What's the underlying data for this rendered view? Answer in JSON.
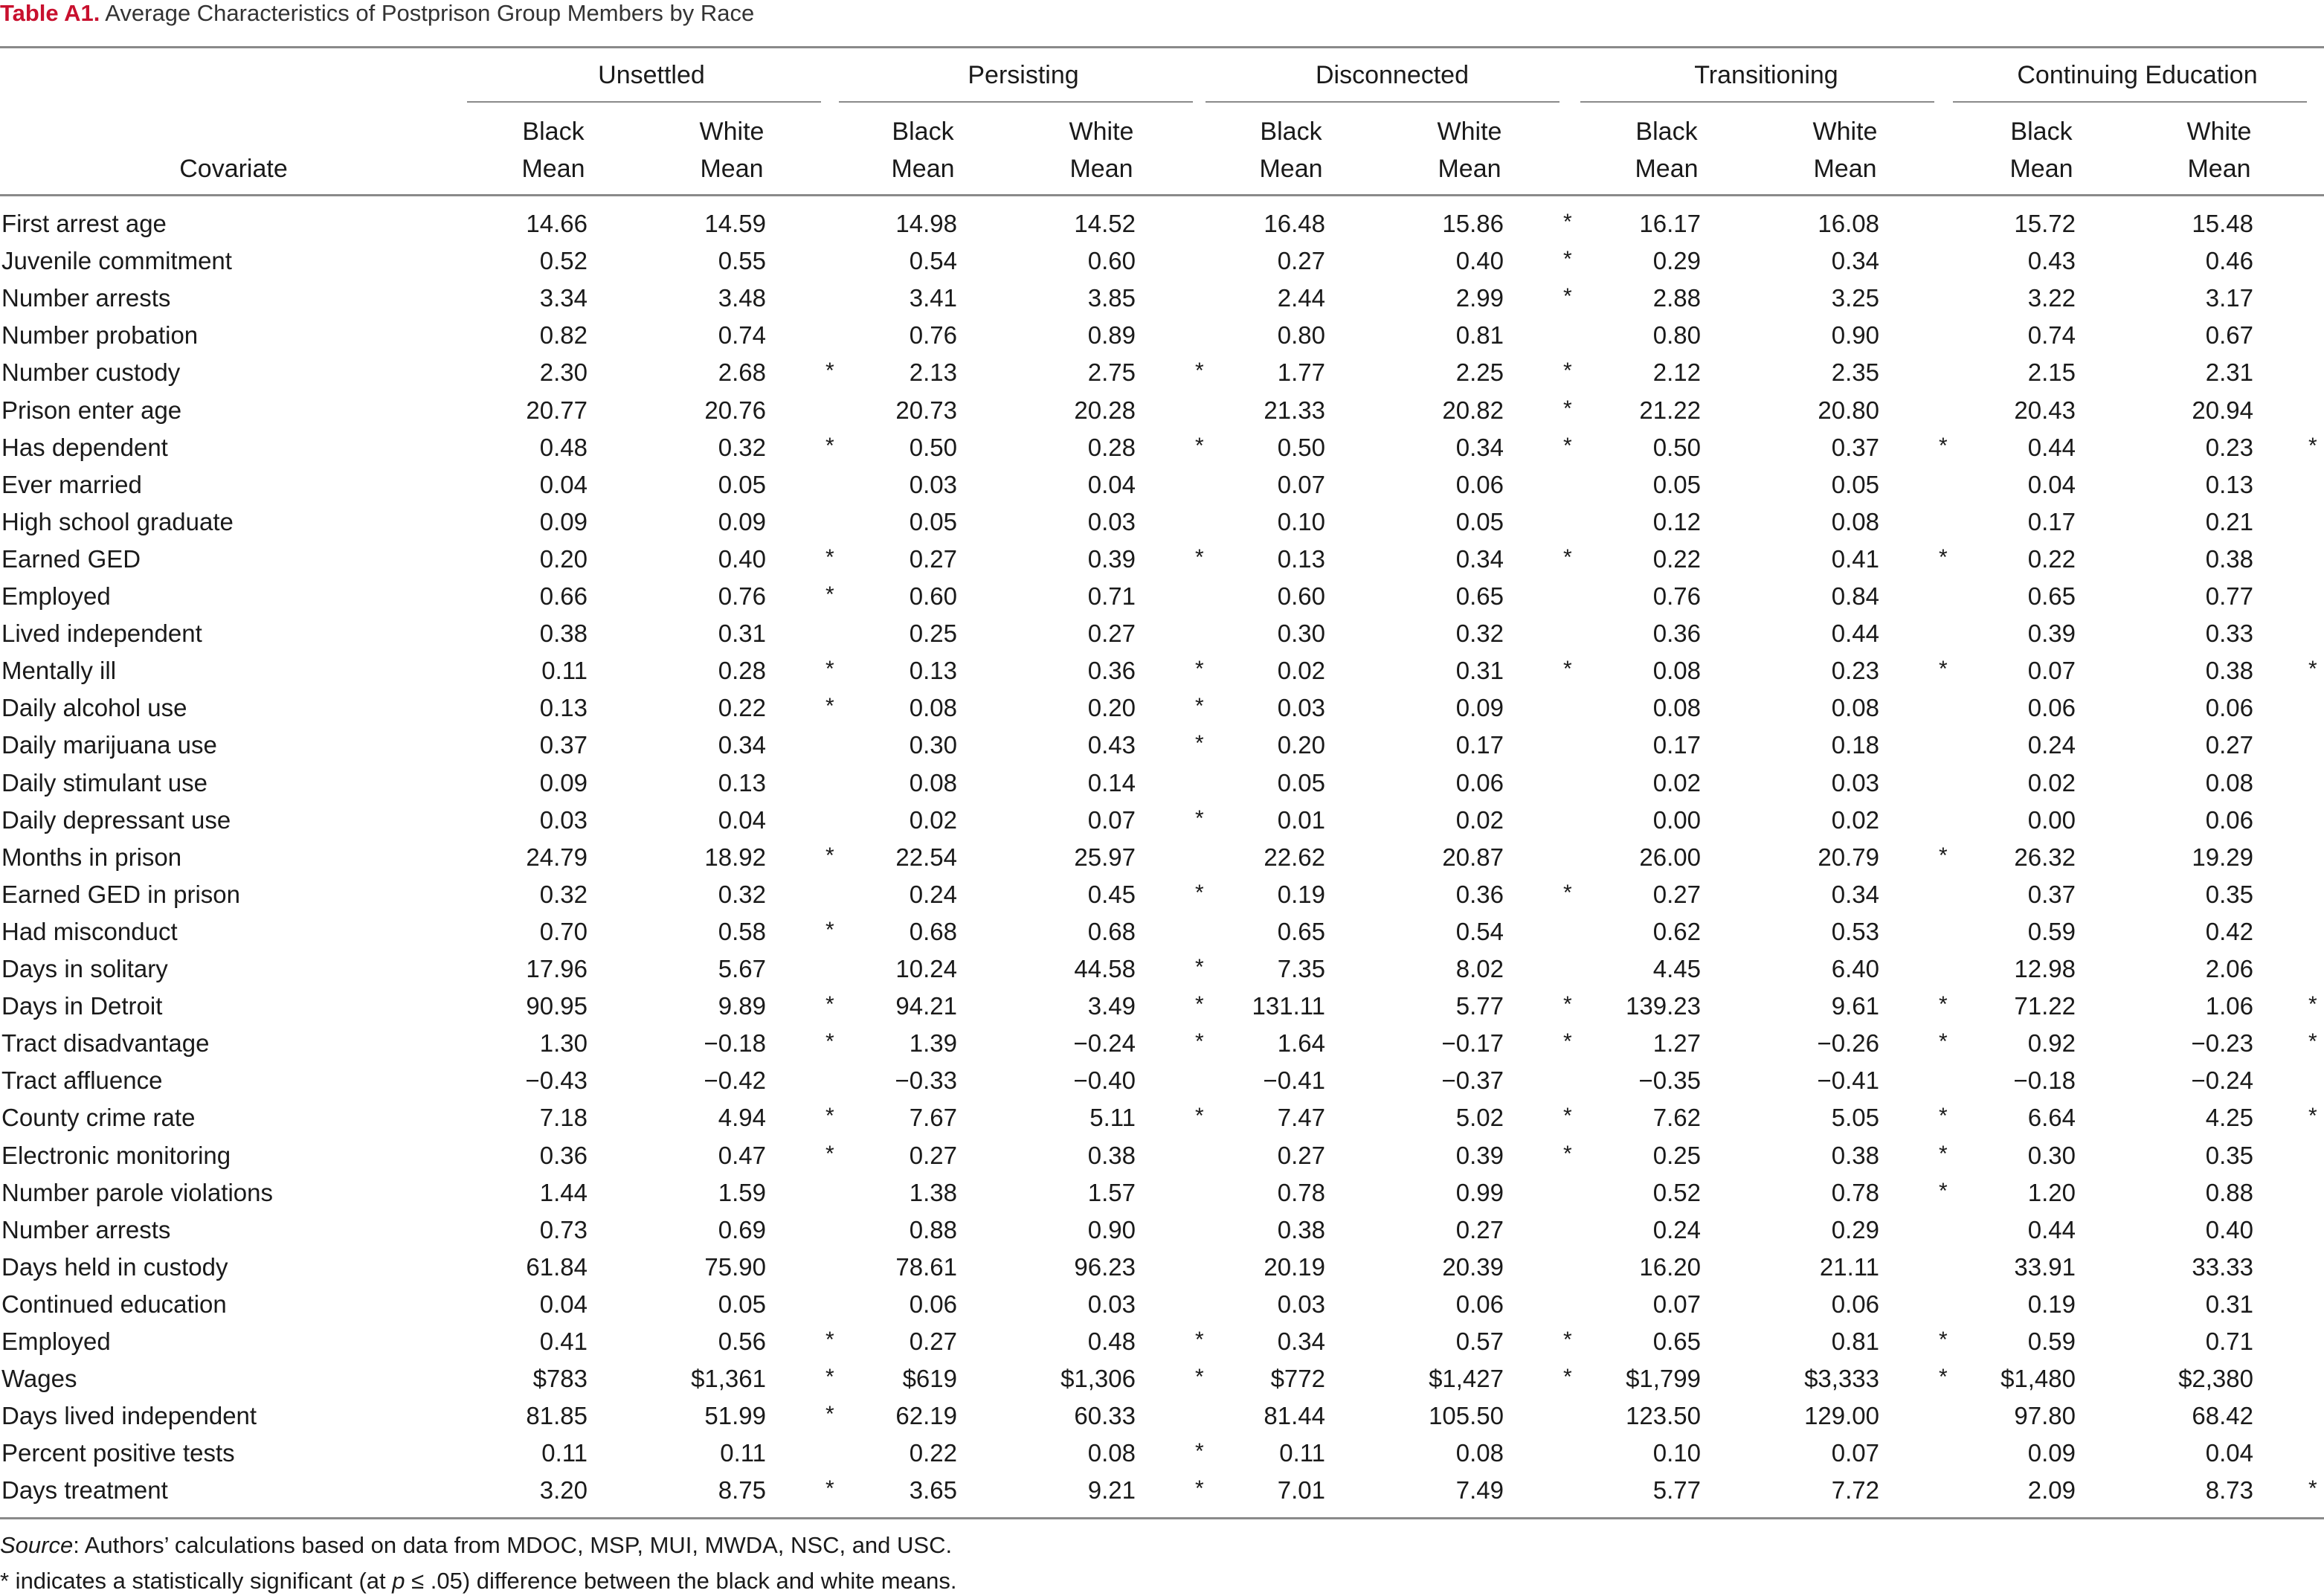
{
  "caption": {
    "label": "Table A1.",
    "title": "Average Characteristics of Postprison Group Members by Race"
  },
  "columns": {
    "covariate_header": "Covariate",
    "groups": [
      "Unsettled",
      "Persisting",
      "Disconnected",
      "Transitioning",
      "Continuing Education"
    ],
    "sub_top": [
      "Black",
      "White"
    ],
    "sub_bottom": [
      "Mean",
      "Mean"
    ]
  },
  "rows": [
    {
      "label": "First arrest age",
      "v": [
        "14.66",
        "14.59",
        "14.98",
        "14.52",
        "16.48",
        "15.86",
        "16.17",
        "16.08",
        "15.72",
        "15.48"
      ],
      "s": [
        "",
        "",
        "*",
        "",
        ""
      ]
    },
    {
      "label": "Juvenile commitment",
      "v": [
        "0.52",
        "0.55",
        "0.54",
        "0.60",
        "0.27",
        "0.40",
        "0.29",
        "0.34",
        "0.43",
        "0.46"
      ],
      "s": [
        "",
        "",
        "*",
        "",
        ""
      ]
    },
    {
      "label": "Number arrests",
      "v": [
        "3.34",
        "3.48",
        "3.41",
        "3.85",
        "2.44",
        "2.99",
        "2.88",
        "3.25",
        "3.22",
        "3.17"
      ],
      "s": [
        "",
        "",
        "*",
        "",
        ""
      ]
    },
    {
      "label": "Number probation",
      "v": [
        "0.82",
        "0.74",
        "0.76",
        "0.89",
        "0.80",
        "0.81",
        "0.80",
        "0.90",
        "0.74",
        "0.67"
      ],
      "s": [
        "",
        "",
        "",
        "",
        ""
      ]
    },
    {
      "label": "Number custody",
      "v": [
        "2.30",
        "2.68",
        "2.13",
        "2.75",
        "1.77",
        "2.25",
        "2.12",
        "2.35",
        "2.15",
        "2.31"
      ],
      "s": [
        "*",
        "*",
        "*",
        "",
        ""
      ]
    },
    {
      "label": "Prison enter age",
      "v": [
        "20.77",
        "20.76",
        "20.73",
        "20.28",
        "21.33",
        "20.82",
        "21.22",
        "20.80",
        "20.43",
        "20.94"
      ],
      "s": [
        "",
        "",
        "*",
        "",
        ""
      ]
    },
    {
      "label": "Has dependent",
      "v": [
        "0.48",
        "0.32",
        "0.50",
        "0.28",
        "0.50",
        "0.34",
        "0.50",
        "0.37",
        "0.44",
        "0.23"
      ],
      "s": [
        "*",
        "*",
        "*",
        "*",
        "*"
      ]
    },
    {
      "label": "Ever married",
      "v": [
        "0.04",
        "0.05",
        "0.03",
        "0.04",
        "0.07",
        "0.06",
        "0.05",
        "0.05",
        "0.04",
        "0.13"
      ],
      "s": [
        "",
        "",
        "",
        "",
        ""
      ]
    },
    {
      "label": "High school graduate",
      "v": [
        "0.09",
        "0.09",
        "0.05",
        "0.03",
        "0.10",
        "0.05",
        "0.12",
        "0.08",
        "0.17",
        "0.21"
      ],
      "s": [
        "",
        "",
        "",
        "",
        ""
      ]
    },
    {
      "label": "Earned GED",
      "v": [
        "0.20",
        "0.40",
        "0.27",
        "0.39",
        "0.13",
        "0.34",
        "0.22",
        "0.41",
        "0.22",
        "0.38"
      ],
      "s": [
        "*",
        "*",
        "*",
        "*",
        ""
      ]
    },
    {
      "label": "Employed",
      "v": [
        "0.66",
        "0.76",
        "0.60",
        "0.71",
        "0.60",
        "0.65",
        "0.76",
        "0.84",
        "0.65",
        "0.77"
      ],
      "s": [
        "*",
        "",
        "",
        "",
        ""
      ]
    },
    {
      "label": "Lived independent",
      "v": [
        "0.38",
        "0.31",
        "0.25",
        "0.27",
        "0.30",
        "0.32",
        "0.36",
        "0.44",
        "0.39",
        "0.33"
      ],
      "s": [
        "",
        "",
        "",
        "",
        ""
      ]
    },
    {
      "label": "Mentally ill",
      "v": [
        "0.11",
        "0.28",
        "0.13",
        "0.36",
        "0.02",
        "0.31",
        "0.08",
        "0.23",
        "0.07",
        "0.38"
      ],
      "s": [
        "*",
        "*",
        "*",
        "*",
        "*"
      ]
    },
    {
      "label": "Daily alcohol use",
      "v": [
        "0.13",
        "0.22",
        "0.08",
        "0.20",
        "0.03",
        "0.09",
        "0.08",
        "0.08",
        "0.06",
        "0.06"
      ],
      "s": [
        "*",
        "*",
        "",
        "",
        ""
      ]
    },
    {
      "label": "Daily marijuana use",
      "v": [
        "0.37",
        "0.34",
        "0.30",
        "0.43",
        "0.20",
        "0.17",
        "0.17",
        "0.18",
        "0.24",
        "0.27"
      ],
      "s": [
        "",
        "*",
        "",
        "",
        ""
      ]
    },
    {
      "label": "Daily stimulant use",
      "v": [
        "0.09",
        "0.13",
        "0.08",
        "0.14",
        "0.05",
        "0.06",
        "0.02",
        "0.03",
        "0.02",
        "0.08"
      ],
      "s": [
        "",
        "",
        "",
        "",
        ""
      ]
    },
    {
      "label": "Daily depressant use",
      "v": [
        "0.03",
        "0.04",
        "0.02",
        "0.07",
        "0.01",
        "0.02",
        "0.00",
        "0.02",
        "0.00",
        "0.06"
      ],
      "s": [
        "",
        "*",
        "",
        "",
        ""
      ]
    },
    {
      "label": "Months in prison",
      "v": [
        "24.79",
        "18.92",
        "22.54",
        "25.97",
        "22.62",
        "20.87",
        "26.00",
        "20.79",
        "26.32",
        "19.29"
      ],
      "s": [
        "*",
        "",
        "",
        "*",
        ""
      ]
    },
    {
      "label": "Earned GED in prison",
      "v": [
        "0.32",
        "0.32",
        "0.24",
        "0.45",
        "0.19",
        "0.36",
        "0.27",
        "0.34",
        "0.37",
        "0.35"
      ],
      "s": [
        "",
        "*",
        "*",
        "",
        ""
      ]
    },
    {
      "label": "Had misconduct",
      "v": [
        "0.70",
        "0.58",
        "0.68",
        "0.68",
        "0.65",
        "0.54",
        "0.62",
        "0.53",
        "0.59",
        "0.42"
      ],
      "s": [
        "*",
        "",
        "",
        "",
        ""
      ]
    },
    {
      "label": "Days in solitary",
      "v": [
        "17.96",
        "5.67",
        "10.24",
        "44.58",
        "7.35",
        "8.02",
        "4.45",
        "6.40",
        "12.98",
        "2.06"
      ],
      "s": [
        "",
        "*",
        "",
        "",
        ""
      ]
    },
    {
      "label": "Days in Detroit",
      "v": [
        "90.95",
        "9.89",
        "94.21",
        "3.49",
        "131.11",
        "5.77",
        "139.23",
        "9.61",
        "71.22",
        "1.06"
      ],
      "s": [
        "*",
        "*",
        "*",
        "*",
        "*"
      ]
    },
    {
      "label": "Tract disadvantage",
      "v": [
        "1.30",
        "−0.18",
        "1.39",
        "−0.24",
        "1.64",
        "−0.17",
        "1.27",
        "−0.26",
        "0.92",
        "−0.23"
      ],
      "s": [
        "*",
        "*",
        "*",
        "*",
        "*"
      ]
    },
    {
      "label": "Tract affluence",
      "v": [
        "−0.43",
        "−0.42",
        "−0.33",
        "−0.40",
        "−0.41",
        "−0.37",
        "−0.35",
        "−0.41",
        "−0.18",
        "−0.24"
      ],
      "s": [
        "",
        "",
        "",
        "",
        ""
      ]
    },
    {
      "label": "County crime rate",
      "v": [
        "7.18",
        "4.94",
        "7.67",
        "5.11",
        "7.47",
        "5.02",
        "7.62",
        "5.05",
        "6.64",
        "4.25"
      ],
      "s": [
        "*",
        "*",
        "*",
        "*",
        "*"
      ]
    },
    {
      "label": "Electronic monitoring",
      "v": [
        "0.36",
        "0.47",
        "0.27",
        "0.38",
        "0.27",
        "0.39",
        "0.25",
        "0.38",
        "0.30",
        "0.35"
      ],
      "s": [
        "*",
        "",
        "*",
        "*",
        ""
      ]
    },
    {
      "label": "Number parole violations",
      "v": [
        "1.44",
        "1.59",
        "1.38",
        "1.57",
        "0.78",
        "0.99",
        "0.52",
        "0.78",
        "1.20",
        "0.88"
      ],
      "s": [
        "",
        "",
        "",
        "*",
        ""
      ]
    },
    {
      "label": "Number arrests",
      "v": [
        "0.73",
        "0.69",
        "0.88",
        "0.90",
        "0.38",
        "0.27",
        "0.24",
        "0.29",
        "0.44",
        "0.40"
      ],
      "s": [
        "",
        "",
        "",
        "",
        ""
      ]
    },
    {
      "label": "Days held in custody",
      "v": [
        "61.84",
        "75.90",
        "78.61",
        "96.23",
        "20.19",
        "20.39",
        "16.20",
        "21.11",
        "33.91",
        "33.33"
      ],
      "s": [
        "",
        "",
        "",
        "",
        ""
      ]
    },
    {
      "label": "Continued education",
      "v": [
        "0.04",
        "0.05",
        "0.06",
        "0.03",
        "0.03",
        "0.06",
        "0.07",
        "0.06",
        "0.19",
        "0.31"
      ],
      "s": [
        "",
        "",
        "",
        "",
        ""
      ]
    },
    {
      "label": "Employed",
      "v": [
        "0.41",
        "0.56",
        "0.27",
        "0.48",
        "0.34",
        "0.57",
        "0.65",
        "0.81",
        "0.59",
        "0.71"
      ],
      "s": [
        "*",
        "*",
        "*",
        "*",
        ""
      ]
    },
    {
      "label": "Wages",
      "v": [
        "$783",
        "$1,361",
        "$619",
        "$1,306",
        "$772",
        "$1,427",
        "$1,799",
        "$3,333",
        "$1,480",
        "$2,380"
      ],
      "s": [
        "*",
        "*",
        "*",
        "*",
        ""
      ]
    },
    {
      "label": "Days lived independent",
      "v": [
        "81.85",
        "51.99",
        "62.19",
        "60.33",
        "81.44",
        "105.50",
        "123.50",
        "129.00",
        "97.80",
        "68.42"
      ],
      "s": [
        "*",
        "",
        "",
        "",
        ""
      ]
    },
    {
      "label": "Percent positive tests",
      "v": [
        "0.11",
        "0.11",
        "0.22",
        "0.08",
        "0.11",
        "0.08",
        "0.10",
        "0.07",
        "0.09",
        "0.04"
      ],
      "s": [
        "",
        "*",
        "",
        "",
        ""
      ]
    },
    {
      "label": "Days treatment",
      "v": [
        "3.20",
        "8.75",
        "3.65",
        "9.21",
        "7.01",
        "7.49",
        "5.77",
        "7.72",
        "2.09",
        "8.73"
      ],
      "s": [
        "*",
        "*",
        "",
        "",
        "*"
      ]
    }
  ],
  "footnotes": {
    "source_label": "Source",
    "source_text": ": Authors’ calculations based on data from MDOC, MSP, MUI, MWDA, NSC, and USC.",
    "significance_prefix": "* indicates a statistically significant (at ",
    "significance_p": "p",
    "significance_suffix": " ≤ .05) difference between the black and white means."
  }
}
